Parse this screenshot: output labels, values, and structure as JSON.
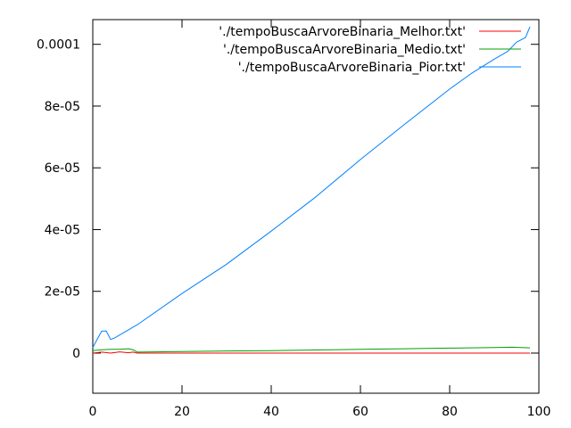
{
  "chart_data": {
    "type": "line",
    "title": "",
    "xlabel": "",
    "ylabel": "",
    "xlim": [
      0,
      100
    ],
    "ylim": [
      -1.3e-05,
      0.000108
    ],
    "legend_position": "top-right",
    "grid": false,
    "x_ticks": [
      {
        "value": 0,
        "label": "0"
      },
      {
        "value": 20,
        "label": "20"
      },
      {
        "value": 40,
        "label": "40"
      },
      {
        "value": 60,
        "label": "60"
      },
      {
        "value": 80,
        "label": "80"
      },
      {
        "value": 100,
        "label": "100"
      }
    ],
    "y_ticks": [
      {
        "value": 0,
        "label": "0"
      },
      {
        "value": 2e-05,
        "label": "2e-05"
      },
      {
        "value": 4e-05,
        "label": "4e-05"
      },
      {
        "value": 6e-05,
        "label": "6e-05"
      },
      {
        "value": 8e-05,
        "label": "8e-05"
      },
      {
        "value": 0.0001,
        "label": "0.0001"
      }
    ],
    "series": [
      {
        "name": "'./tempoBuscaArvoreBinaria_Melhor.txt'",
        "color": "#ff0000",
        "x": [
          0,
          2,
          4,
          6,
          8,
          9,
          10,
          20,
          40,
          60,
          80,
          98
        ],
        "y": [
          0,
          3e-07,
          0,
          4e-07,
          1e-07,
          3e-07,
          0,
          0,
          0,
          0,
          0,
          0
        ]
      },
      {
        "name": "'./tempoBuscaArvoreBinaria_Medio.txt'",
        "color": "#00a000",
        "x": [
          0,
          2,
          4,
          6,
          8,
          9,
          10,
          20,
          30,
          40,
          50,
          60,
          70,
          80,
          90,
          94,
          98
        ],
        "y": [
          8e-07,
          1.1e-06,
          1.2e-06,
          1.2e-06,
          1.4e-06,
          1.1e-06,
          3e-07,
          5e-07,
          7e-07,
          8e-07,
          1e-06,
          1.2e-06,
          1.4e-06,
          1.6e-06,
          1.8e-06,
          1.9e-06,
          1.7e-06
        ]
      },
      {
        "name": "'./tempoBuscaArvoreBinaria_Pior.txt'",
        "color": "#0080ff",
        "x": [
          0,
          1,
          2,
          3,
          4,
          5,
          10,
          20,
          30,
          40,
          50,
          60,
          70,
          80,
          85,
          90,
          93,
          95,
          97,
          98
        ],
        "y": [
          1.8e-06,
          4.5e-06,
          7.1e-06,
          7.2e-06,
          4.4e-06,
          5e-06,
          9.2e-06,
          1.93e-05,
          2.88e-05,
          3.95e-05,
          5.06e-05,
          6.27e-05,
          7.42e-05,
          8.55e-05,
          9.07e-05,
          9.52e-05,
          9.77e-05,
          0.0001007,
          0.0001022,
          0.0001057
        ]
      }
    ]
  }
}
